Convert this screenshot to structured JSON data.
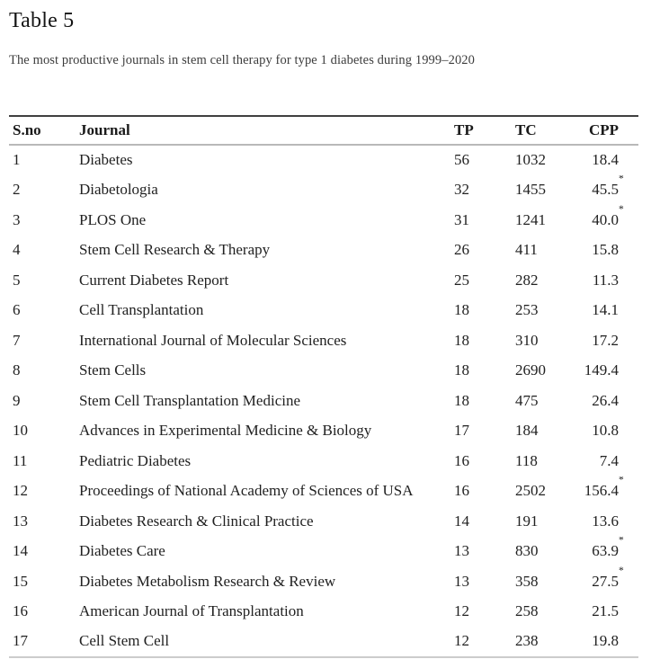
{
  "header": {
    "table_label": "Table 5",
    "caption": "The most productive journals in stem cell therapy for type 1 diabetes during 1999–2020"
  },
  "colors": {
    "top_rule": "#404040",
    "header_rule": "#b9b9b9",
    "bottom_rule": "#cccccc",
    "text": "#212121"
  },
  "table": {
    "columns": [
      "S.no",
      "Journal",
      "TP",
      "TC",
      "CPP"
    ],
    "rows": [
      {
        "sno": "1",
        "journal": "Diabetes",
        "tp": "56",
        "tc": "1032",
        "cpp": "18.4",
        "star": ""
      },
      {
        "sno": "2",
        "journal": "Diabetologia",
        "tp": "32",
        "tc": "1455",
        "cpp": "45.5",
        "star": "*"
      },
      {
        "sno": "3",
        "journal": "PLOS One",
        "tp": "31",
        "tc": "1241",
        "cpp": "40.0",
        "star": "*"
      },
      {
        "sno": "4",
        "journal": "Stem Cell Research & Therapy",
        "tp": "26",
        "tc": "411",
        "cpp": "15.8",
        "star": ""
      },
      {
        "sno": "5",
        "journal": "Current Diabetes Report",
        "tp": "25",
        "tc": "282",
        "cpp": "11.3",
        "star": ""
      },
      {
        "sno": "6",
        "journal": "Cell Transplantation",
        "tp": "18",
        "tc": "253",
        "cpp": "14.1",
        "star": ""
      },
      {
        "sno": "7",
        "journal": "International Journal of Molecular Sciences",
        "tp": "18",
        "tc": "310",
        "cpp": "17.2",
        "star": ""
      },
      {
        "sno": "8",
        "journal": "Stem Cells",
        "tp": "18",
        "tc": "2690",
        "cpp": "149.4",
        "star": ""
      },
      {
        "sno": "9",
        "journal": "Stem Cell Transplantation Medicine",
        "tp": "18",
        "tc": "475",
        "cpp": "26.4",
        "star": ""
      },
      {
        "sno": "10",
        "journal": "Advances in Experimental Medicine & Biology",
        "tp": "17",
        "tc": "184",
        "cpp": "10.8",
        "star": ""
      },
      {
        "sno": "11",
        "journal": "Pediatric Diabetes",
        "tp": "16",
        "tc": "118",
        "cpp": "7.4",
        "star": ""
      },
      {
        "sno": "12",
        "journal": "Proceedings of National Academy of Sciences of USA",
        "tp": "16",
        "tc": "2502",
        "cpp": "156.4",
        "star": "*"
      },
      {
        "sno": "13",
        "journal": "Diabetes Research & Clinical Practice",
        "tp": "14",
        "tc": "191",
        "cpp": "13.6",
        "star": ""
      },
      {
        "sno": "14",
        "journal": "Diabetes Care",
        "tp": "13",
        "tc": "830",
        "cpp": "63.9",
        "star": "*"
      },
      {
        "sno": "15",
        "journal": "Diabetes Metabolism Research & Review",
        "tp": "13",
        "tc": "358",
        "cpp": "27.5",
        "star": "*"
      },
      {
        "sno": "16",
        "journal": "American Journal of Transplantation",
        "tp": "12",
        "tc": "258",
        "cpp": "21.5",
        "star": ""
      },
      {
        "sno": "17",
        "journal": "Cell Stem Cell",
        "tp": "12",
        "tc": "238",
        "cpp": "19.8",
        "star": ""
      }
    ]
  }
}
